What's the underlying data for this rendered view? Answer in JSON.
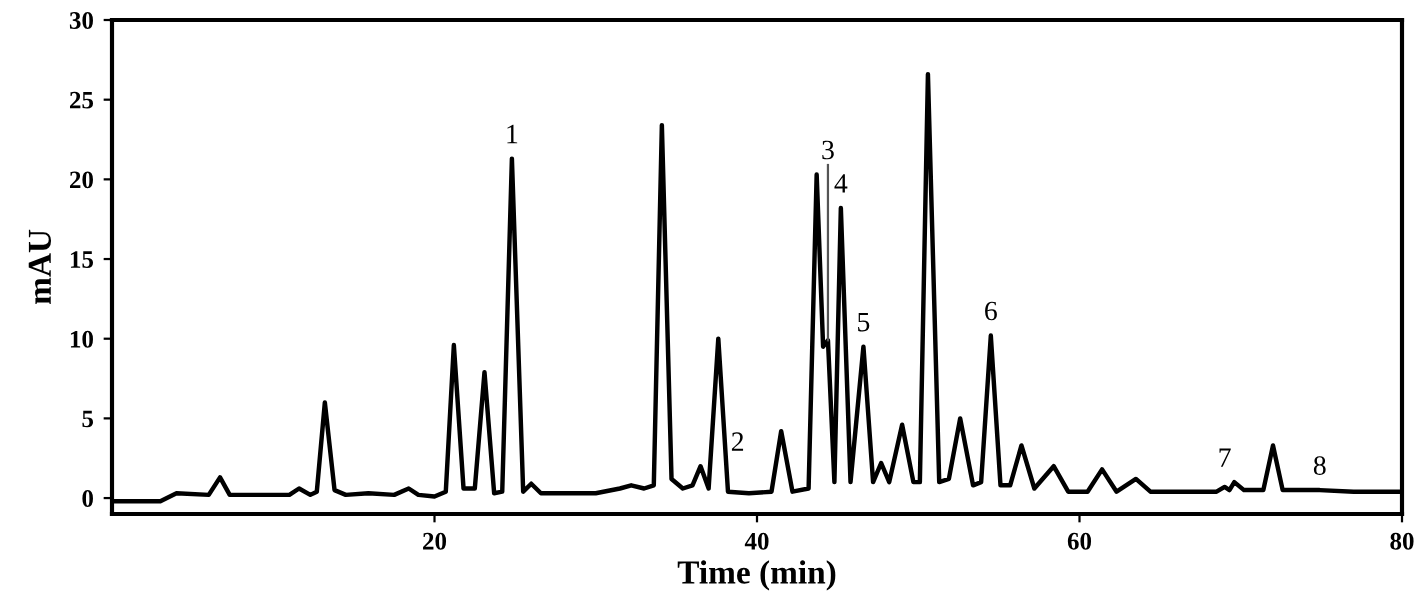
{
  "chart_data": {
    "type": "line",
    "xlabel": "Time (min)",
    "ylabel": "mAU",
    "xlim": [
      0,
      80
    ],
    "ylim": [
      -1,
      30
    ],
    "xticks": [
      20,
      40,
      60,
      80
    ],
    "yticks": [
      0,
      5,
      10,
      15,
      20,
      25,
      30
    ],
    "grid": false,
    "legend": false,
    "marker": "none",
    "line_style": "solid",
    "series": [
      {
        "color": "#000000",
        "x": [
          0,
          3,
          4,
          6,
          6.7,
          7.3,
          11,
          11.6,
          12.3,
          12.7,
          13.2,
          13.8,
          14.5,
          15.9,
          17.5,
          18.4,
          19,
          20,
          20.7,
          21.2,
          21.8,
          22.5,
          23.1,
          23.7,
          24.2,
          24.8,
          25.5,
          26.0,
          26.6,
          30,
          31.5,
          32.2,
          33,
          33.6,
          34.1,
          34.7,
          35.4,
          36.0,
          36.5,
          37.0,
          37.6,
          38.2,
          39.5,
          40.9,
          41.5,
          42.2,
          43.2,
          43.7,
          44.1,
          44.4,
          44.8,
          45.2,
          45.8,
          46.6,
          47.2,
          47.7,
          48.2,
          49.0,
          49.7,
          50.1,
          50.6,
          51.3,
          51.9,
          52.6,
          53.4,
          53.9,
          54.5,
          55.1,
          55.7,
          56.4,
          57.2,
          58.4,
          59.3,
          60.5,
          61.4,
          62.3,
          63.5,
          64.4,
          67,
          68.5,
          69.0,
          69.3,
          69.6,
          70.2,
          71.4,
          72.0,
          72.6,
          74.9,
          77,
          80
        ],
        "values": [
          -0.2,
          -0.2,
          0.3,
          0.2,
          1.3,
          0.2,
          0.2,
          0.6,
          0.2,
          0.4,
          6.0,
          0.5,
          0.2,
          0.3,
          0.2,
          0.6,
          0.2,
          0.1,
          0.4,
          9.6,
          0.6,
          0.6,
          7.9,
          0.3,
          0.4,
          21.3,
          0.4,
          0.9,
          0.3,
          0.3,
          0.6,
          0.8,
          0.6,
          0.8,
          23.4,
          1.2,
          0.6,
          0.8,
          2.0,
          0.6,
          10.0,
          0.4,
          0.3,
          0.4,
          4.2,
          0.4,
          0.6,
          20.3,
          9.5,
          9.9,
          1.0,
          18.2,
          1.0,
          9.5,
          1.0,
          2.2,
          1.0,
          4.6,
          1.0,
          1.0,
          26.6,
          1.0,
          1.2,
          5.0,
          0.8,
          1.0,
          10.2,
          0.8,
          0.8,
          3.3,
          0.6,
          2.0,
          0.4,
          0.4,
          1.8,
          0.4,
          1.2,
          0.4,
          0.4,
          0.4,
          0.7,
          0.5,
          1.0,
          0.5,
          0.5,
          3.3,
          0.5,
          0.5,
          0.4,
          0.4
        ]
      }
    ],
    "annotations": [
      {
        "text": "1",
        "x": 24.8,
        "y": 21.3
      },
      {
        "text": "2",
        "x": 38.8,
        "y": 0.35
      },
      {
        "text": "3",
        "x": 44.4,
        "y": 9.9
      },
      {
        "text": "4",
        "x": 45.2,
        "y": 18.2
      },
      {
        "text": "5",
        "x": 46.6,
        "y": 9.5
      },
      {
        "text": "6",
        "x": 54.5,
        "y": 10.2
      },
      {
        "text": "7",
        "x": 69.0,
        "y": 0.7
      },
      {
        "text": "8",
        "x": 74.9,
        "y": 0.5
      }
    ]
  }
}
